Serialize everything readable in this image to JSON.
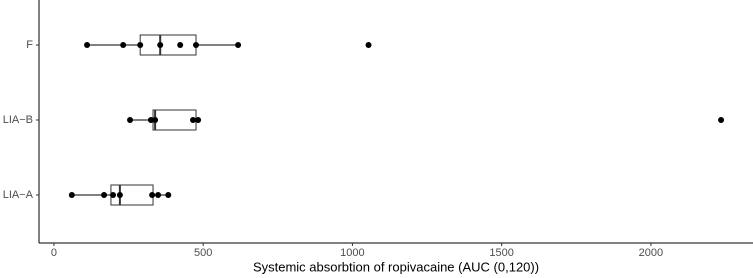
{
  "chart_data": {
    "type": "boxplot",
    "x_label": "Systemic absorbtion of ropivacaine  (AUC (0,120))",
    "categories": [
      "F",
      "LIA−B",
      "LIA−A"
    ],
    "boxes": [
      {
        "min": 111,
        "q1": 289,
        "median": 356,
        "q3": 476,
        "max": 617,
        "points": [
          111,
          232,
          289,
          356,
          423,
          476,
          617,
          1054
        ]
      },
      {
        "min": 255,
        "q1": 332,
        "median": 339,
        "q3": 476,
        "max": 487,
        "points": [
          255,
          325,
          339,
          466,
          483,
          2235
        ]
      },
      {
        "min": 60,
        "q1": 191,
        "median": 221,
        "q3": 332,
        "max": 383,
        "points": [
          60,
          168,
          198,
          221,
          329,
          349,
          383
        ]
      }
    ],
    "xlim": [
      -50,
      2342
    ],
    "xticks": [
      0,
      500,
      1000,
      1500,
      2000
    ],
    "color": "#000000"
  }
}
